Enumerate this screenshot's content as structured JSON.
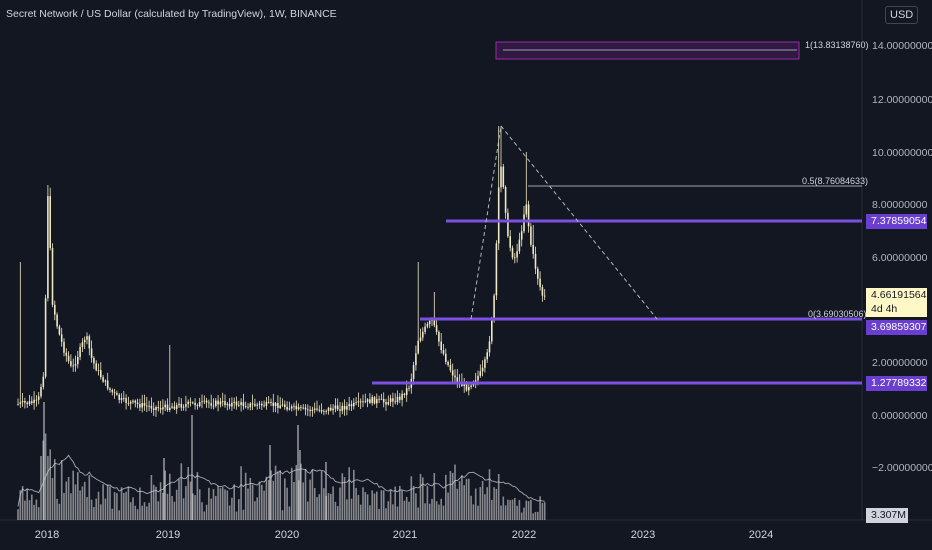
{
  "header": {
    "title": "Secret Network / US Dollar (calculated by TradingView), 1W, BINANCE",
    "currency_button": "USD"
  },
  "colors": {
    "background": "#131722",
    "candle": "#efe8c4",
    "level_line": "#7b4fe0",
    "level_tag_bg": "#6a3fd0",
    "current_price_bg": "#fff7c6",
    "fib_box_border": "#9c27b0"
  },
  "price_axis": {
    "ticks": [
      "14.00000000",
      "12.00000000",
      "10.00000000",
      "8.00000000",
      "6.00000000",
      "2.00000000",
      "0.00000000",
      "−2.00000000"
    ]
  },
  "time_axis": {
    "labels": [
      "2018",
      "2019",
      "2020",
      "2021",
      "2022",
      "2023",
      "2024"
    ]
  },
  "current_price": {
    "value": "4.66191564",
    "countdown": "4d 4h"
  },
  "volume": {
    "last_value": "3.307M"
  },
  "levels": [
    {
      "name": "resistance",
      "label": "7.37859054"
    },
    {
      "name": "support-mid",
      "label": "3.69859307"
    },
    {
      "name": "support-low",
      "label": "1.27789332"
    }
  ],
  "fib_labels": [
    {
      "name": "fib-1",
      "label": "1(13.83138760)"
    },
    {
      "name": "fib-05",
      "label": "0.5(8.76084633)"
    },
    {
      "name": "fib-0",
      "label": "0(3.69030506)"
    }
  ]
}
